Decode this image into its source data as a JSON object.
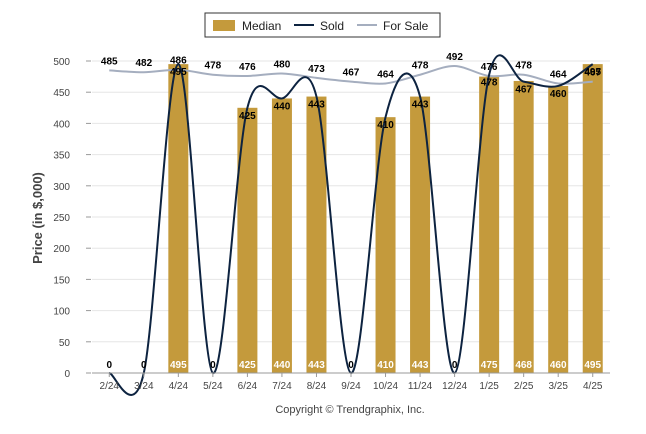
{
  "chart_data": {
    "type": "bar",
    "ylabel": "Price (in $,000)",
    "ylim": [
      0,
      500
    ],
    "yticks": [
      0,
      50,
      100,
      150,
      200,
      250,
      300,
      350,
      400,
      450,
      500
    ],
    "grid": true,
    "legend_position": "top-center",
    "categories": [
      "2/24",
      "3/24",
      "4/24",
      "5/24",
      "6/24",
      "7/24",
      "8/24",
      "9/24",
      "10/24",
      "11/24",
      "12/24",
      "1/25",
      "2/25",
      "3/25",
      "4/25"
    ],
    "series": [
      {
        "name": "Median",
        "kind": "bar",
        "color": "#c49a3c",
        "values": [
          0,
          0,
          495,
          0,
          425,
          440,
          443,
          0,
          410,
          443,
          0,
          475,
          468,
          460,
          495
        ]
      },
      {
        "name": "Sold",
        "kind": "line",
        "color": "#0d2340",
        "values": [
          0,
          0,
          495,
          0,
          425,
          440,
          443,
          0,
          410,
          443,
          0,
          478,
          467,
          460,
          495
        ]
      },
      {
        "name": "For Sale",
        "kind": "line",
        "color": "#a5aebf",
        "values": [
          485,
          482,
          486,
          478,
          476,
          480,
          473,
          467,
          464,
          478,
          492,
          476,
          478,
          464,
          467
        ]
      }
    ],
    "median_labels": [
      "0",
      "0",
      "495",
      "0",
      "425",
      "440",
      "443",
      "0",
      "410",
      "443",
      "0",
      "475",
      "468",
      "460",
      "495"
    ],
    "forsale_labels": [
      "485",
      "482",
      "486",
      "478",
      "476",
      "480",
      "473",
      "467",
      "464",
      "478",
      "492",
      "476",
      "478",
      "464",
      "467"
    ],
    "sold_top_labels": [
      "",
      "",
      "495",
      "",
      "425",
      "440",
      "443",
      "",
      "410",
      "443",
      "",
      "478",
      "467",
      "460",
      "495"
    ]
  },
  "footer": {
    "copyright": "Copyright © Trendgraphix, Inc."
  }
}
